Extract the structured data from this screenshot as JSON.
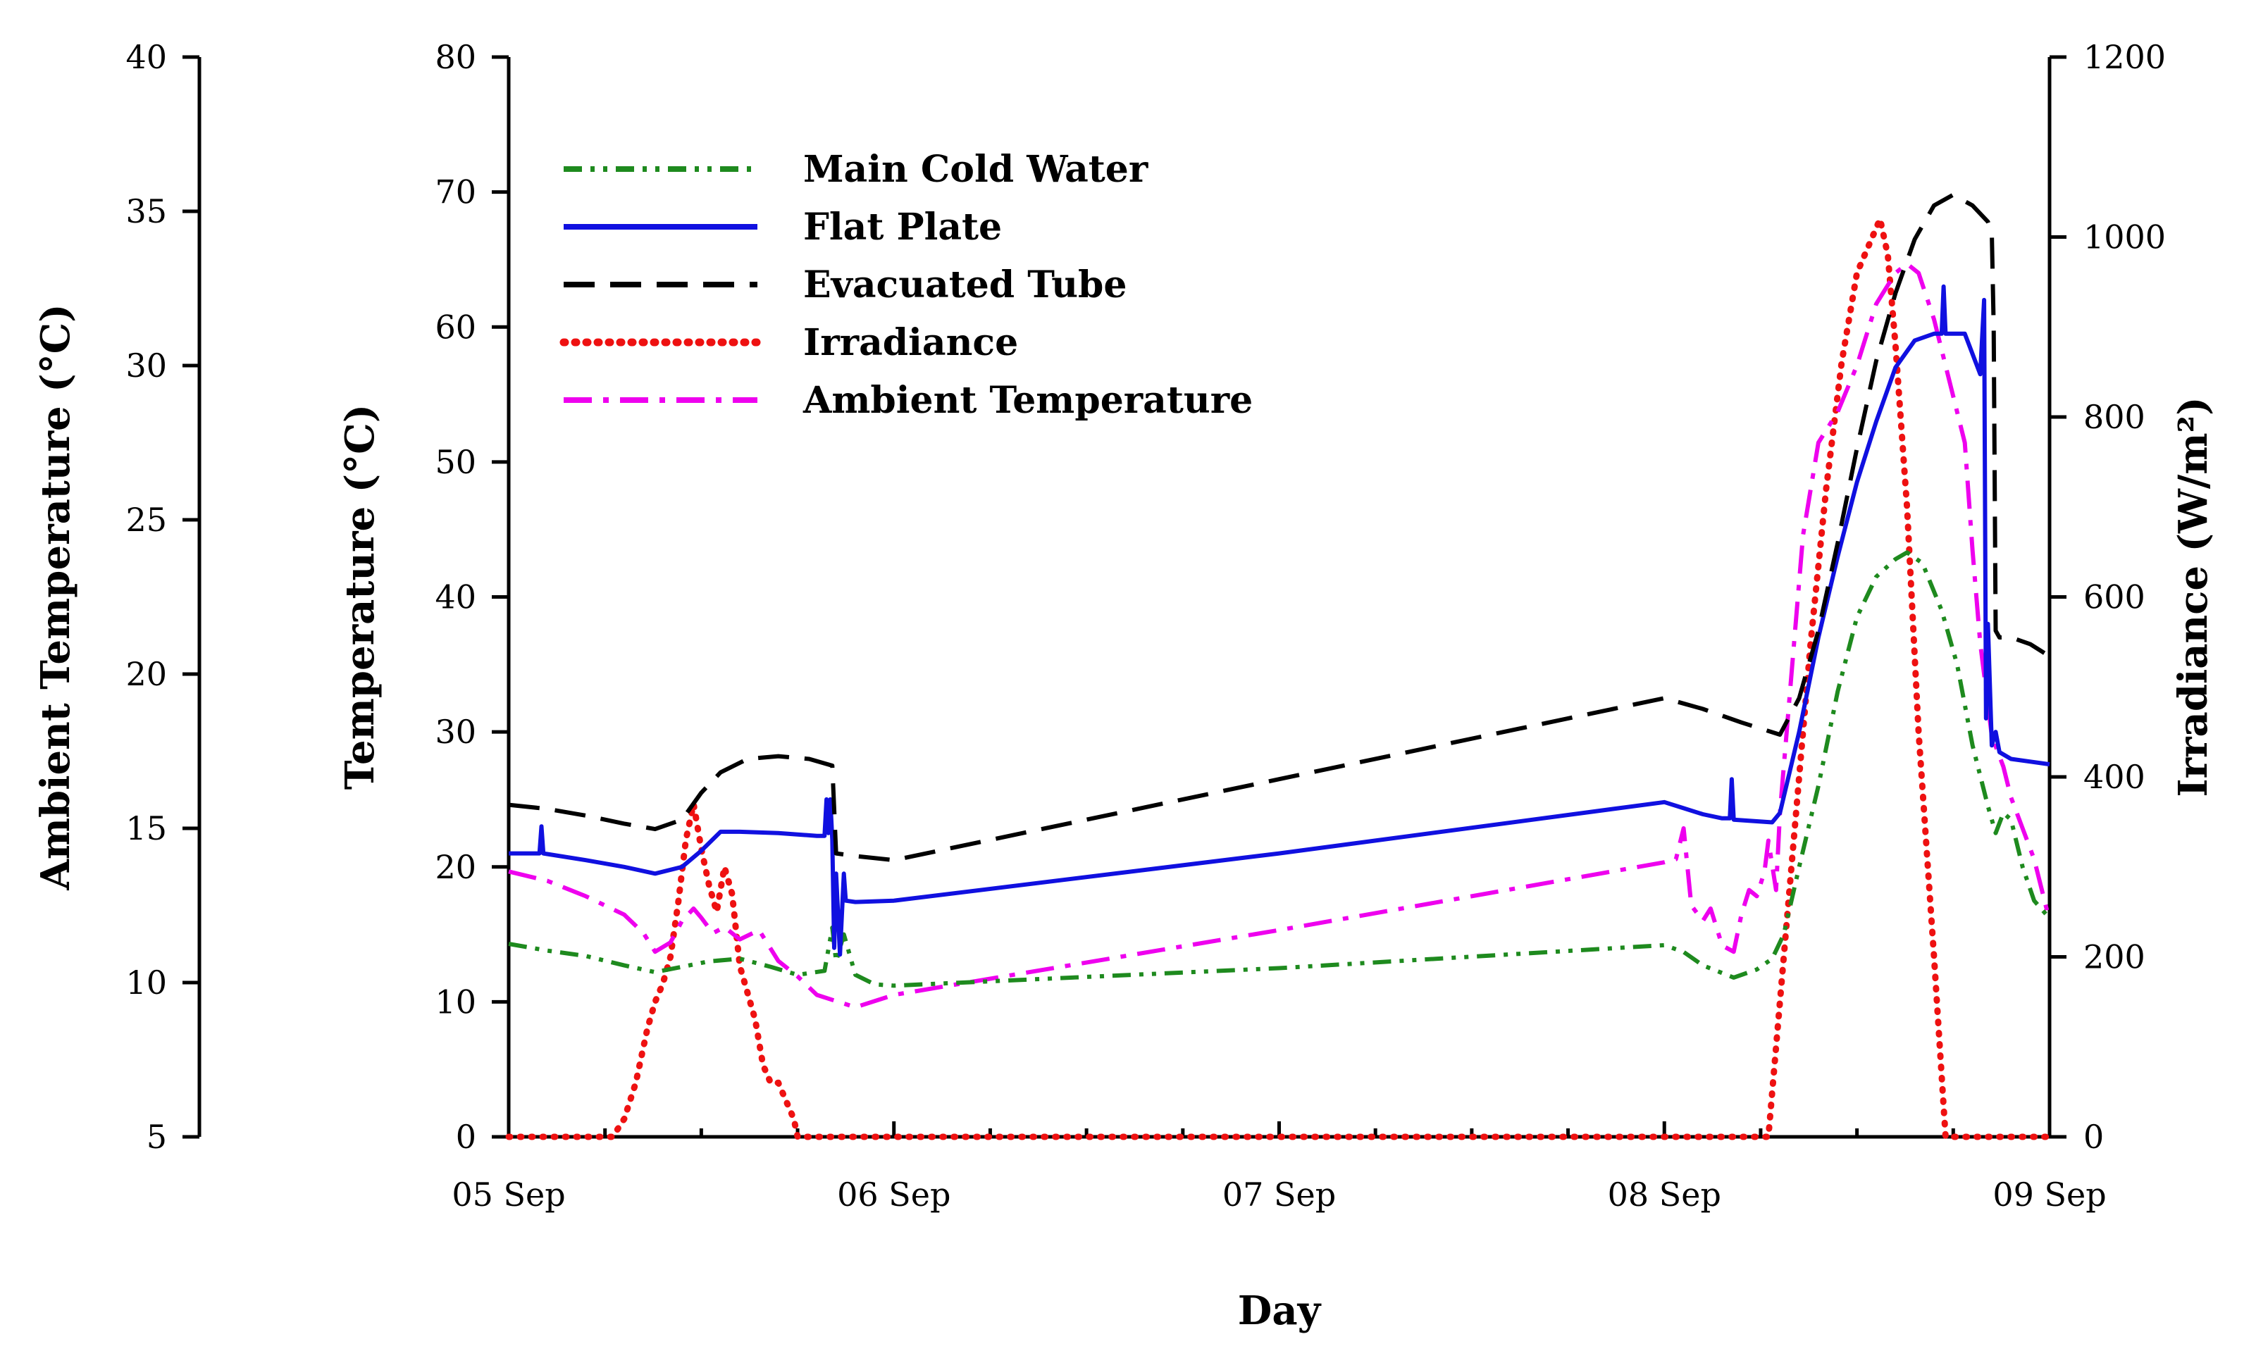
{
  "chart_data": {
    "type": "line",
    "xlabel": "Day",
    "ylabel_left": "Temperature (°C)",
    "ylabel_outer": "Ambient Temperature (°C)",
    "ylabel_right": "Irradiance (W/m²)",
    "xlim": [
      0,
      4
    ],
    "x_ticks": [
      {
        "x": 0,
        "label": "05 Sep"
      },
      {
        "x": 1,
        "label": "06 Sep"
      },
      {
        "x": 2,
        "label": "07 Sep"
      },
      {
        "x": 3,
        "label": "08 Sep"
      },
      {
        "x": 4,
        "label": "09 Sep"
      }
    ],
    "y_left": {
      "range": [
        0,
        80
      ],
      "ticks": [
        0,
        10,
        20,
        30,
        40,
        50,
        60,
        70,
        80
      ]
    },
    "y_outer": {
      "range": [
        5,
        40
      ],
      "ticks": [
        5,
        10,
        15,
        20,
        25,
        30,
        35,
        40
      ]
    },
    "y_right": {
      "range": [
        0,
        1200
      ],
      "ticks": [
        0,
        200,
        400,
        600,
        800,
        1000,
        1200
      ]
    },
    "legend_position": "top-left",
    "series": [
      {
        "name": "Main Cold Water",
        "color": "#1e8a1e",
        "dash": "dashdotdot",
        "axis": "left",
        "points": [
          [
            0,
            14.3
          ],
          [
            0.1,
            13.8
          ],
          [
            0.2,
            13.4
          ],
          [
            0.3,
            12.7
          ],
          [
            0.38,
            12.2
          ],
          [
            0.45,
            12.6
          ],
          [
            0.52,
            13.0
          ],
          [
            0.6,
            13.2
          ],
          [
            0.68,
            12.6
          ],
          [
            0.75,
            12.0
          ],
          [
            0.82,
            12.3
          ],
          [
            0.84,
            15.5
          ],
          [
            0.85,
            13.0
          ],
          [
            0.87,
            15.0
          ],
          [
            0.9,
            12.0
          ],
          [
            0.95,
            11.3
          ],
          [
            1.0,
            11.2
          ],
          [
            2.0,
            12.5
          ],
          [
            3.0,
            14.2
          ],
          [
            3.05,
            13.7
          ],
          [
            3.1,
            12.7
          ],
          [
            3.18,
            11.8
          ],
          [
            3.24,
            12.4
          ],
          [
            3.28,
            13.2
          ],
          [
            3.31,
            15.0
          ],
          [
            3.35,
            20.0
          ],
          [
            3.4,
            26.0
          ],
          [
            3.45,
            33.0
          ],
          [
            3.5,
            38.5
          ],
          [
            3.55,
            41.5
          ],
          [
            3.6,
            42.8
          ],
          [
            3.63,
            43.3
          ],
          [
            3.67,
            42.5
          ],
          [
            3.72,
            39.0
          ],
          [
            3.76,
            35.0
          ],
          [
            3.8,
            29.0
          ],
          [
            3.84,
            24.5
          ],
          [
            3.86,
            22.5
          ],
          [
            3.88,
            24.0
          ],
          [
            3.9,
            23.5
          ],
          [
            3.93,
            20.0
          ],
          [
            3.96,
            17.5
          ],
          [
            4.0,
            16.2
          ]
        ]
      },
      {
        "name": "Flat Plate",
        "color": "#1010e0",
        "dash": "solid",
        "axis": "left",
        "points": [
          [
            0,
            21.0
          ],
          [
            0.08,
            21.0
          ],
          [
            0.085,
            23.0
          ],
          [
            0.09,
            21.0
          ],
          [
            0.2,
            20.5
          ],
          [
            0.3,
            20.0
          ],
          [
            0.38,
            19.5
          ],
          [
            0.45,
            20.0
          ],
          [
            0.5,
            21.2
          ],
          [
            0.55,
            22.6
          ],
          [
            0.6,
            22.6
          ],
          [
            0.7,
            22.5
          ],
          [
            0.8,
            22.3
          ],
          [
            0.82,
            22.3
          ],
          [
            0.825,
            25.0
          ],
          [
            0.83,
            22.5
          ],
          [
            0.835,
            25.0
          ],
          [
            0.84,
            22.0
          ],
          [
            0.845,
            14.0
          ],
          [
            0.85,
            19.5
          ],
          [
            0.86,
            13.5
          ],
          [
            0.87,
            19.5
          ],
          [
            0.875,
            17.5
          ],
          [
            0.9,
            17.4
          ],
          [
            1.0,
            17.5
          ],
          [
            2.0,
            21.0
          ],
          [
            3.0,
            24.8
          ],
          [
            3.1,
            23.9
          ],
          [
            3.15,
            23.6
          ],
          [
            3.17,
            23.6
          ],
          [
            3.175,
            26.5
          ],
          [
            3.18,
            23.5
          ],
          [
            3.28,
            23.3
          ],
          [
            3.3,
            24.0
          ],
          [
            3.35,
            30.0
          ],
          [
            3.4,
            37.0
          ],
          [
            3.45,
            43.0
          ],
          [
            3.5,
            48.5
          ],
          [
            3.55,
            53.0
          ],
          [
            3.6,
            57.0
          ],
          [
            3.65,
            59.0
          ],
          [
            3.7,
            59.5
          ],
          [
            3.72,
            59.5
          ],
          [
            3.725,
            63.0
          ],
          [
            3.73,
            59.5
          ],
          [
            3.78,
            59.5
          ],
          [
            3.82,
            56.5
          ],
          [
            3.83,
            62.0
          ],
          [
            3.835,
            31.0
          ],
          [
            3.84,
            38.0
          ],
          [
            3.85,
            29.0
          ],
          [
            3.86,
            30.0
          ],
          [
            3.87,
            28.5
          ],
          [
            3.9,
            28.0
          ],
          [
            3.95,
            27.8
          ],
          [
            4.0,
            27.6
          ]
        ]
      },
      {
        "name": "Evacuated Tube",
        "color": "#000000",
        "dash": "dashed",
        "axis": "left",
        "points": [
          [
            0,
            24.6
          ],
          [
            0.1,
            24.3
          ],
          [
            0.2,
            23.8
          ],
          [
            0.3,
            23.2
          ],
          [
            0.38,
            22.8
          ],
          [
            0.45,
            23.5
          ],
          [
            0.5,
            25.5
          ],
          [
            0.55,
            27.0
          ],
          [
            0.62,
            28.0
          ],
          [
            0.7,
            28.2
          ],
          [
            0.78,
            28.0
          ],
          [
            0.84,
            27.5
          ],
          [
            0.85,
            21.0
          ],
          [
            0.9,
            20.8
          ],
          [
            1.0,
            20.5
          ],
          [
            2.0,
            26.5
          ],
          [
            3.0,
            32.5
          ],
          [
            3.1,
            31.7
          ],
          [
            3.2,
            30.7
          ],
          [
            3.3,
            29.8
          ],
          [
            3.35,
            32.5
          ],
          [
            3.4,
            37.5
          ],
          [
            3.45,
            44.0
          ],
          [
            3.5,
            51.0
          ],
          [
            3.55,
            57.5
          ],
          [
            3.6,
            62.5
          ],
          [
            3.65,
            66.5
          ],
          [
            3.7,
            69.0
          ],
          [
            3.75,
            69.8
          ],
          [
            3.8,
            69.0
          ],
          [
            3.84,
            67.8
          ],
          [
            3.85,
            67.0
          ],
          [
            3.855,
            60.0
          ],
          [
            3.86,
            37.5
          ],
          [
            3.87,
            37.0
          ],
          [
            3.9,
            37.0
          ],
          [
            3.95,
            36.5
          ],
          [
            4.0,
            35.6
          ]
        ]
      },
      {
        "name": "Irradiance",
        "color": "#ee1111",
        "dash": "dotted",
        "axis": "right",
        "points": [
          [
            0,
            0
          ],
          [
            0.27,
            0
          ],
          [
            0.3,
            20
          ],
          [
            0.33,
            60
          ],
          [
            0.36,
            120
          ],
          [
            0.38,
            150
          ],
          [
            0.4,
            170
          ],
          [
            0.42,
            200
          ],
          [
            0.44,
            260
          ],
          [
            0.46,
            330
          ],
          [
            0.48,
            370
          ],
          [
            0.5,
            320
          ],
          [
            0.52,
            280
          ],
          [
            0.54,
            250
          ],
          [
            0.56,
            300
          ],
          [
            0.58,
            270
          ],
          [
            0.6,
            190
          ],
          [
            0.62,
            160
          ],
          [
            0.64,
            130
          ],
          [
            0.66,
            80
          ],
          [
            0.68,
            60
          ],
          [
            0.7,
            60
          ],
          [
            0.72,
            40
          ],
          [
            0.74,
            20
          ],
          [
            0.75,
            0
          ],
          [
            3.27,
            0
          ],
          [
            3.3,
            150
          ],
          [
            3.34,
            350
          ],
          [
            3.38,
            550
          ],
          [
            3.42,
            720
          ],
          [
            3.46,
            860
          ],
          [
            3.5,
            960
          ],
          [
            3.54,
            1000
          ],
          [
            3.56,
            1020
          ],
          [
            3.58,
            980
          ],
          [
            3.6,
            880
          ],
          [
            3.63,
            700
          ],
          [
            3.66,
            450
          ],
          [
            3.7,
            200
          ],
          [
            3.73,
            0
          ],
          [
            4.0,
            0
          ]
        ]
      },
      {
        "name": "Ambient Temperature",
        "color": "#ee00ee",
        "dash": "dashdot",
        "axis": "outer",
        "points": [
          [
            0,
            13.6
          ],
          [
            0.1,
            13.3
          ],
          [
            0.2,
            12.8
          ],
          [
            0.3,
            12.2
          ],
          [
            0.35,
            11.6
          ],
          [
            0.38,
            11.0
          ],
          [
            0.42,
            11.3
          ],
          [
            0.45,
            12.0
          ],
          [
            0.48,
            12.4
          ],
          [
            0.5,
            12.1
          ],
          [
            0.53,
            11.6
          ],
          [
            0.56,
            11.8
          ],
          [
            0.6,
            11.4
          ],
          [
            0.65,
            11.7
          ],
          [
            0.7,
            10.7
          ],
          [
            0.75,
            10.2
          ],
          [
            0.8,
            9.6
          ],
          [
            0.85,
            9.4
          ],
          [
            0.9,
            9.2
          ],
          [
            1.0,
            9.6
          ],
          [
            2.0,
            11.7
          ],
          [
            3.0,
            13.9
          ],
          [
            3.03,
            14.0
          ],
          [
            3.05,
            15.0
          ],
          [
            3.07,
            12.5
          ],
          [
            3.1,
            12.0
          ],
          [
            3.12,
            12.4
          ],
          [
            3.15,
            11.2
          ],
          [
            3.18,
            11.0
          ],
          [
            3.2,
            12.2
          ],
          [
            3.22,
            13.0
          ],
          [
            3.24,
            12.8
          ],
          [
            3.26,
            13.6
          ],
          [
            3.27,
            14.6
          ],
          [
            3.29,
            13.0
          ],
          [
            3.3,
            15.5
          ],
          [
            3.33,
            20.0
          ],
          [
            3.36,
            24.5
          ],
          [
            3.4,
            27.5
          ],
          [
            3.45,
            28.5
          ],
          [
            3.5,
            30.0
          ],
          [
            3.55,
            32.0
          ],
          [
            3.6,
            33.0
          ],
          [
            3.63,
            33.3
          ],
          [
            3.66,
            33.0
          ],
          [
            3.7,
            31.5
          ],
          [
            3.75,
            29.0
          ],
          [
            3.78,
            27.5
          ],
          [
            3.8,
            24.0
          ],
          [
            3.82,
            21.0
          ],
          [
            3.85,
            18.0
          ],
          [
            3.88,
            17.0
          ],
          [
            3.9,
            16.0
          ],
          [
            3.93,
            15.0
          ],
          [
            3.96,
            14.0
          ],
          [
            3.98,
            13.0
          ],
          [
            4.0,
            12.0
          ]
        ]
      }
    ]
  }
}
